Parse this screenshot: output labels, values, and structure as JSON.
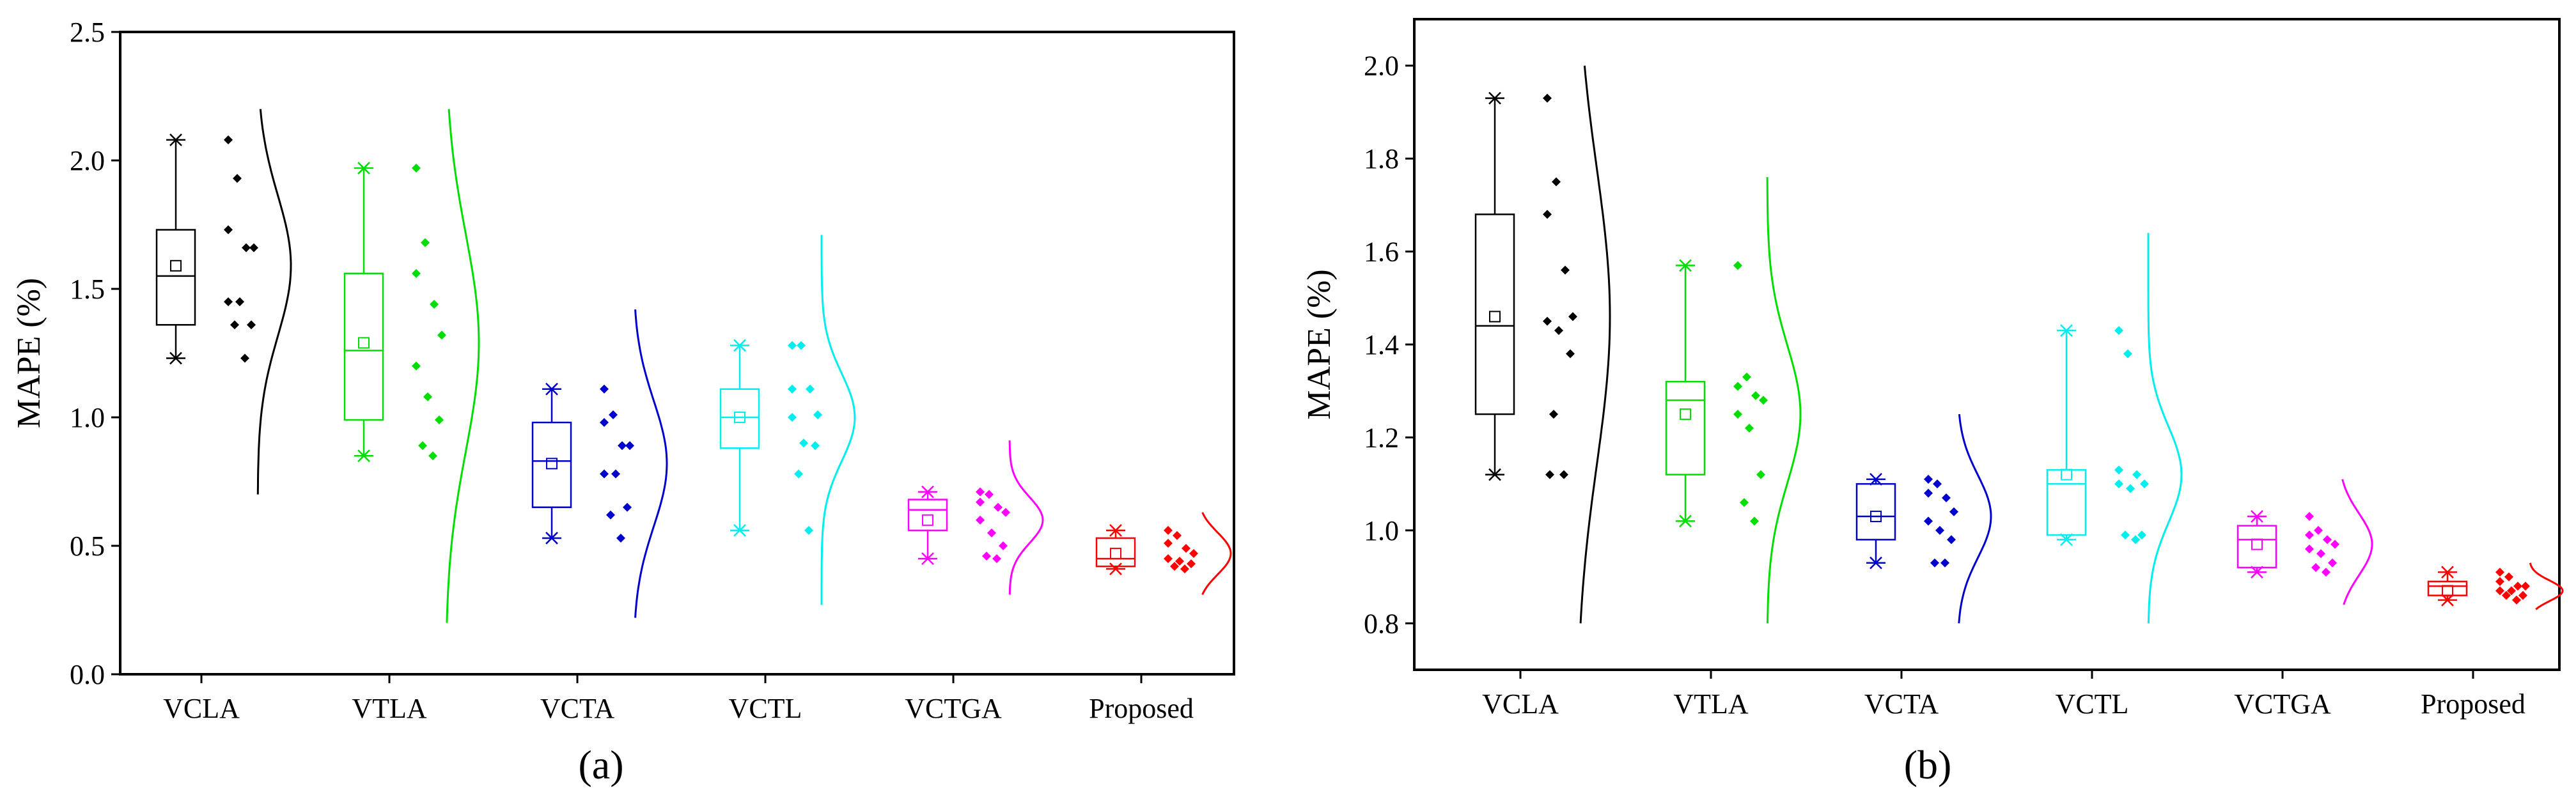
{
  "chart_data": [
    {
      "type": "box",
      "panel_label": "(a)",
      "ylabel": "MAPE (%)",
      "xlabel": "",
      "ylim": [
        0.0,
        2.5
      ],
      "yticks": [
        0.0,
        0.5,
        1.0,
        1.5,
        2.0,
        2.5
      ],
      "ytick_labels": [
        "0.0",
        "0.5",
        "1.0",
        "1.5",
        "2.0",
        "2.5"
      ],
      "categories": [
        "VCLA",
        "VTLA",
        "VCTA",
        "VCTL",
        "VCTGA",
        "Proposed"
      ],
      "colors": [
        "#000000",
        "#00dd00",
        "#0000cc",
        "#00eeee",
        "#ff00ff",
        "#ff0000"
      ],
      "series": [
        {
          "name": "VCLA",
          "min": 1.23,
          "q1": 1.36,
          "median": 1.55,
          "mean": 1.59,
          "q3": 1.73,
          "max": 2.08,
          "points": [
            2.08,
            1.93,
            1.73,
            1.66,
            1.66,
            1.45,
            1.45,
            1.36,
            1.36,
            1.23
          ],
          "dist_range": [
            0.7,
            2.2
          ]
        },
        {
          "name": "VTLA",
          "min": 0.85,
          "q1": 0.99,
          "median": 1.26,
          "mean": 1.29,
          "q3": 1.56,
          "max": 1.97,
          "points": [
            1.97,
            1.68,
            1.56,
            1.44,
            1.32,
            1.2,
            1.08,
            0.99,
            0.89,
            0.85
          ],
          "dist_range": [
            0.2,
            2.2
          ]
        },
        {
          "name": "VCTA",
          "min": 0.53,
          "q1": 0.65,
          "median": 0.83,
          "mean": 0.82,
          "q3": 0.98,
          "max": 1.11,
          "points": [
            1.11,
            1.01,
            0.98,
            0.89,
            0.89,
            0.78,
            0.78,
            0.65,
            0.62,
            0.53
          ],
          "dist_range": [
            0.22,
            1.42
          ]
        },
        {
          "name": "VCTL",
          "min": 0.56,
          "q1": 0.88,
          "median": 1.0,
          "mean": 1.0,
          "q3": 1.11,
          "max": 1.28,
          "points": [
            1.28,
            1.28,
            1.11,
            1.11,
            1.01,
            1.0,
            0.9,
            0.89,
            0.78,
            0.56
          ],
          "dist_range": [
            0.27,
            1.71
          ]
        },
        {
          "name": "VCTGA",
          "min": 0.45,
          "q1": 0.56,
          "median": 0.64,
          "mean": 0.6,
          "q3": 0.68,
          "max": 0.71,
          "points": [
            0.71,
            0.7,
            0.67,
            0.65,
            0.63,
            0.6,
            0.55,
            0.5,
            0.46,
            0.45
          ],
          "dist_range": [
            0.31,
            0.91
          ]
        },
        {
          "name": "Proposed",
          "min": 0.41,
          "q1": 0.42,
          "median": 0.45,
          "mean": 0.47,
          "q3": 0.53,
          "max": 0.56,
          "points": [
            0.56,
            0.54,
            0.51,
            0.49,
            0.47,
            0.45,
            0.44,
            0.43,
            0.42,
            0.41
          ],
          "dist_range": [
            0.31,
            0.63
          ]
        }
      ]
    },
    {
      "type": "box",
      "panel_label": "(b)",
      "ylabel": "MAPE (%)",
      "xlabel": "",
      "ylim": [
        0.7,
        2.1
      ],
      "yticks": [
        0.8,
        1.0,
        1.2,
        1.4,
        1.6,
        1.8,
        2.0
      ],
      "ytick_labels": [
        "0.8",
        "1.0",
        "1.2",
        "1.4",
        "1.6",
        "1.8",
        "2.0"
      ],
      "categories": [
        "VCLA",
        "VTLA",
        "VCTA",
        "VCTL",
        "VCTGA",
        "Proposed"
      ],
      "colors": [
        "#000000",
        "#00dd00",
        "#0000cc",
        "#00eeee",
        "#ff00ff",
        "#ff0000"
      ],
      "series": [
        {
          "name": "VCLA",
          "min": 1.12,
          "q1": 1.25,
          "median": 1.44,
          "mean": 1.46,
          "q3": 1.68,
          "max": 1.93,
          "points": [
            1.93,
            1.75,
            1.68,
            1.56,
            1.46,
            1.45,
            1.43,
            1.38,
            1.25,
            1.12,
            1.12
          ],
          "dist_range": [
            0.8,
            2.0
          ]
        },
        {
          "name": "VTLA",
          "min": 1.02,
          "q1": 1.12,
          "median": 1.28,
          "mean": 1.25,
          "q3": 1.32,
          "max": 1.57,
          "points": [
            1.57,
            1.33,
            1.31,
            1.29,
            1.28,
            1.25,
            1.22,
            1.12,
            1.06,
            1.02
          ],
          "dist_range": [
            0.8,
            1.76
          ]
        },
        {
          "name": "VCTA",
          "min": 0.93,
          "q1": 0.98,
          "median": 1.03,
          "mean": 1.03,
          "q3": 1.1,
          "max": 1.11,
          "points": [
            1.11,
            1.1,
            1.08,
            1.07,
            1.04,
            1.02,
            1.0,
            0.98,
            0.93,
            0.93
          ],
          "dist_range": [
            0.8,
            1.25
          ]
        },
        {
          "name": "VCTL",
          "min": 0.98,
          "q1": 0.99,
          "median": 1.1,
          "mean": 1.12,
          "q3": 1.13,
          "max": 1.43,
          "points": [
            1.43,
            1.38,
            1.13,
            1.12,
            1.1,
            1.1,
            1.09,
            0.99,
            0.99,
            0.98
          ],
          "dist_range": [
            0.8,
            1.64
          ]
        },
        {
          "name": "VCTGA",
          "min": 0.91,
          "q1": 0.92,
          "median": 0.98,
          "mean": 0.97,
          "q3": 1.01,
          "max": 1.03,
          "points": [
            1.03,
            1.0,
            0.99,
            0.98,
            0.97,
            0.96,
            0.95,
            0.93,
            0.92,
            0.91
          ],
          "dist_range": [
            0.84,
            1.11
          ]
        },
        {
          "name": "Proposed",
          "min": 0.85,
          "q1": 0.86,
          "median": 0.88,
          "mean": 0.87,
          "q3": 0.89,
          "max": 0.91,
          "points": [
            0.91,
            0.9,
            0.89,
            0.88,
            0.88,
            0.87,
            0.87,
            0.86,
            0.86,
            0.85
          ],
          "dist_range": [
            0.83,
            0.93
          ]
        }
      ]
    }
  ]
}
